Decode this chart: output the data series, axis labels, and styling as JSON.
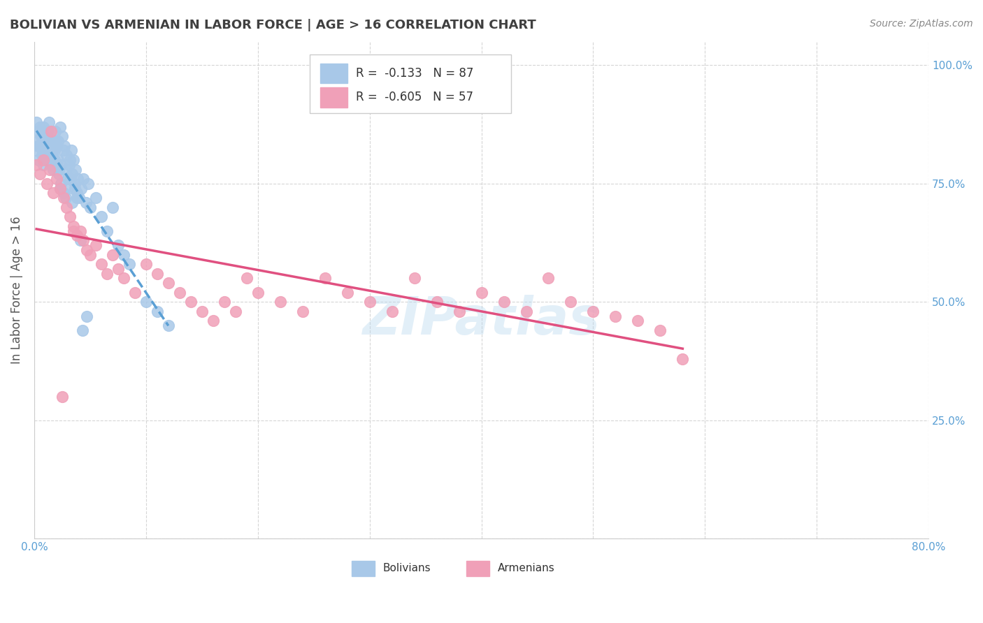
{
  "title": "BOLIVIAN VS ARMENIAN IN LABOR FORCE | AGE > 16 CORRELATION CHART",
  "source": "Source: ZipAtlas.com",
  "ylabel": "In Labor Force | Age > 16",
  "xlim": [
    0.0,
    0.8
  ],
  "ylim": [
    0.0,
    1.05
  ],
  "ytick_positions": [
    0.0,
    0.25,
    0.5,
    0.75,
    1.0
  ],
  "ytick_labels_right": [
    "",
    "25.0%",
    "50.0%",
    "75.0%",
    "100.0%"
  ],
  "bolivian_color": "#a8c8e8",
  "armenian_color": "#f0a0b8",
  "trend_bolivian_color": "#5a9fd4",
  "trend_armenian_color": "#e05080",
  "watermark": "ZIPatlas",
  "legend_bolivian_label": "Bolivians",
  "legend_armenian_label": "Armenians",
  "R_bolivian": -0.133,
  "N_bolivian": 87,
  "R_armenian": -0.605,
  "N_armenian": 57,
  "bolivian_x": [
    0.002,
    0.003,
    0.004,
    0.005,
    0.006,
    0.007,
    0.008,
    0.009,
    0.01,
    0.011,
    0.012,
    0.013,
    0.014,
    0.015,
    0.016,
    0.017,
    0.018,
    0.019,
    0.02,
    0.021,
    0.022,
    0.024,
    0.026,
    0.028,
    0.03,
    0.032,
    0.034,
    0.036,
    0.038,
    0.04,
    0.042,
    0.044,
    0.046,
    0.048,
    0.05,
    0.055,
    0.06,
    0.065,
    0.07,
    0.075,
    0.08,
    0.085,
    0.003,
    0.005,
    0.007,
    0.009,
    0.011,
    0.013,
    0.015,
    0.017,
    0.019,
    0.021,
    0.023,
    0.025,
    0.027,
    0.029,
    0.031,
    0.033,
    0.035,
    0.037,
    0.039,
    0.002,
    0.004,
    0.006,
    0.008,
    0.01,
    0.012,
    0.014,
    0.016,
    0.018,
    0.02,
    0.022,
    0.024,
    0.026,
    0.028,
    0.03,
    0.032,
    0.034,
    0.036,
    0.038,
    0.1,
    0.11,
    0.12,
    0.047,
    0.043,
    0.041,
    0.023
  ],
  "bolivian_y": [
    0.82,
    0.84,
    0.8,
    0.83,
    0.85,
    0.81,
    0.79,
    0.82,
    0.84,
    0.83,
    0.8,
    0.82,
    0.81,
    0.79,
    0.8,
    0.78,
    0.82,
    0.84,
    0.83,
    0.8,
    0.77,
    0.79,
    0.82,
    0.78,
    0.76,
    0.8,
    0.77,
    0.75,
    0.73,
    0.72,
    0.74,
    0.76,
    0.71,
    0.75,
    0.7,
    0.72,
    0.68,
    0.65,
    0.7,
    0.62,
    0.6,
    0.58,
    0.83,
    0.87,
    0.86,
    0.85,
    0.83,
    0.88,
    0.84,
    0.82,
    0.86,
    0.84,
    0.87,
    0.85,
    0.83,
    0.81,
    0.79,
    0.82,
    0.8,
    0.78,
    0.76,
    0.88,
    0.86,
    0.85,
    0.87,
    0.84,
    0.86,
    0.83,
    0.82,
    0.8,
    0.79,
    0.78,
    0.75,
    0.73,
    0.72,
    0.74,
    0.76,
    0.71,
    0.74,
    0.72,
    0.5,
    0.48,
    0.45,
    0.47,
    0.44,
    0.63,
    0.74
  ],
  "armenian_x": [
    0.002,
    0.005,
    0.008,
    0.011,
    0.014,
    0.017,
    0.02,
    0.023,
    0.026,
    0.029,
    0.032,
    0.035,
    0.038,
    0.041,
    0.044,
    0.047,
    0.05,
    0.055,
    0.06,
    0.065,
    0.07,
    0.075,
    0.08,
    0.09,
    0.1,
    0.11,
    0.12,
    0.13,
    0.14,
    0.15,
    0.16,
    0.17,
    0.18,
    0.19,
    0.2,
    0.22,
    0.24,
    0.26,
    0.28,
    0.3,
    0.32,
    0.34,
    0.36,
    0.38,
    0.4,
    0.42,
    0.44,
    0.46,
    0.48,
    0.5,
    0.52,
    0.54,
    0.56,
    0.015,
    0.025,
    0.58,
    0.035
  ],
  "armenian_y": [
    0.79,
    0.77,
    0.8,
    0.75,
    0.78,
    0.73,
    0.76,
    0.74,
    0.72,
    0.7,
    0.68,
    0.66,
    0.64,
    0.65,
    0.63,
    0.61,
    0.6,
    0.62,
    0.58,
    0.56,
    0.6,
    0.57,
    0.55,
    0.52,
    0.58,
    0.56,
    0.54,
    0.52,
    0.5,
    0.48,
    0.46,
    0.5,
    0.48,
    0.55,
    0.52,
    0.5,
    0.48,
    0.55,
    0.52,
    0.5,
    0.48,
    0.55,
    0.5,
    0.48,
    0.52,
    0.5,
    0.48,
    0.55,
    0.5,
    0.48,
    0.47,
    0.46,
    0.44,
    0.86,
    0.3,
    0.38,
    0.65
  ],
  "background_color": "#ffffff",
  "grid_color": "#cccccc",
  "title_color": "#404040",
  "axis_label_color": "#5a9fd4"
}
